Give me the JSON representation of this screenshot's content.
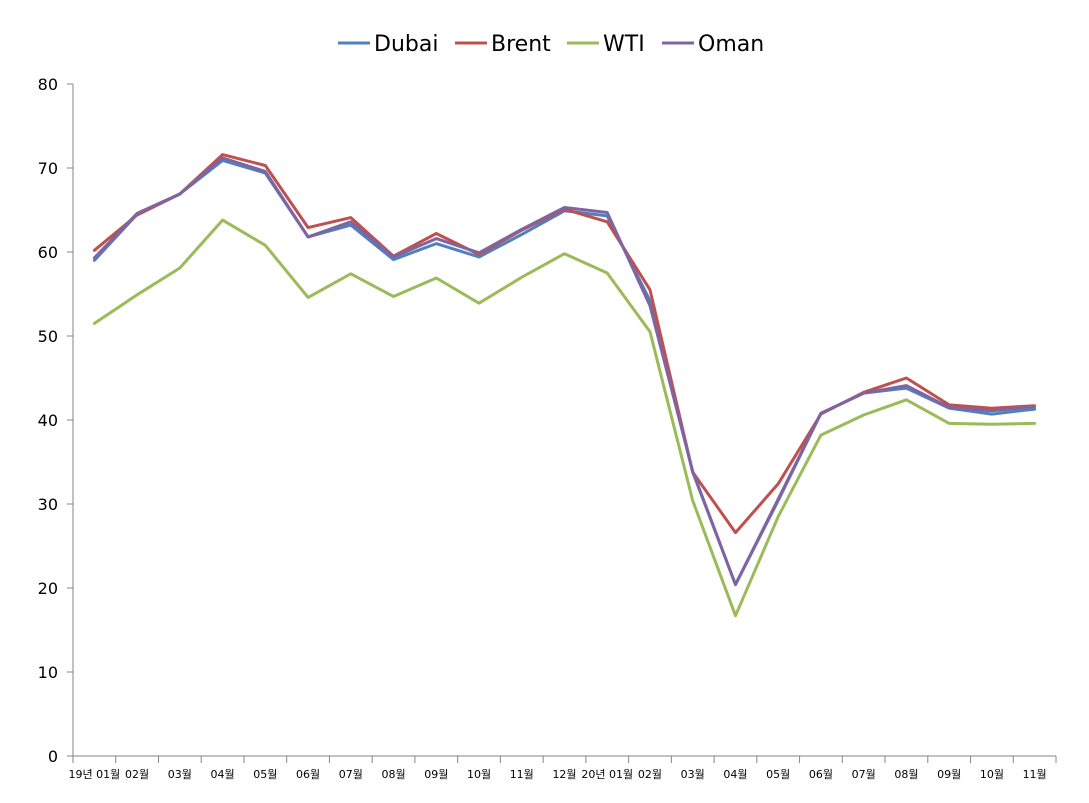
{
  "chart_data": {
    "type": "line",
    "title": "",
    "xlabel": "",
    "ylabel": "",
    "ylim": [
      0,
      80
    ],
    "yticks": [
      0,
      10,
      20,
      30,
      40,
      50,
      60,
      70,
      80
    ],
    "grid": false,
    "legend": "top-center",
    "categories": [
      "19년 01월",
      "02월",
      "03월",
      "04월",
      "05월",
      "06월",
      "07월",
      "08월",
      "09월",
      "10월",
      "11월",
      "12월",
      "20년 01월",
      "02월",
      "03월",
      "04월",
      "05월",
      "06월",
      "07월",
      "08월",
      "09월",
      "10월",
      "11월"
    ],
    "series": [
      {
        "name": "Dubai",
        "color": "#4f81bd",
        "values": [
          59.0,
          64.5,
          66.9,
          70.9,
          69.4,
          61.8,
          63.2,
          59.1,
          61.0,
          59.4,
          62.1,
          64.9,
          64.3,
          54.2,
          33.8,
          20.4,
          30.4,
          40.8,
          43.2,
          43.8,
          41.4,
          40.7,
          41.3
        ]
      },
      {
        "name": "Brent",
        "color": "#c0504d",
        "values": [
          60.2,
          64.4,
          66.9,
          71.6,
          70.3,
          62.9,
          64.1,
          59.5,
          62.2,
          59.7,
          62.6,
          65.1,
          63.6,
          55.5,
          33.8,
          26.6,
          32.4,
          40.7,
          43.3,
          45.0,
          41.8,
          41.4,
          41.7
        ]
      },
      {
        "name": "WTI",
        "color": "#9bbb59",
        "values": [
          51.5,
          54.9,
          58.1,
          63.8,
          60.8,
          54.6,
          57.4,
          54.7,
          56.9,
          53.9,
          57.0,
          59.8,
          57.5,
          50.5,
          30.4,
          16.7,
          28.5,
          38.2,
          40.6,
          42.4,
          39.6,
          39.5,
          39.6
        ]
      },
      {
        "name": "Oman",
        "color": "#8064a2",
        "values": [
          59.3,
          64.6,
          66.9,
          71.2,
          69.6,
          61.8,
          63.6,
          59.4,
          61.6,
          59.9,
          62.7,
          65.3,
          64.7,
          53.6,
          33.9,
          20.4,
          30.6,
          40.8,
          43.2,
          44.1,
          41.5,
          41.1,
          41.6
        ]
      }
    ]
  }
}
